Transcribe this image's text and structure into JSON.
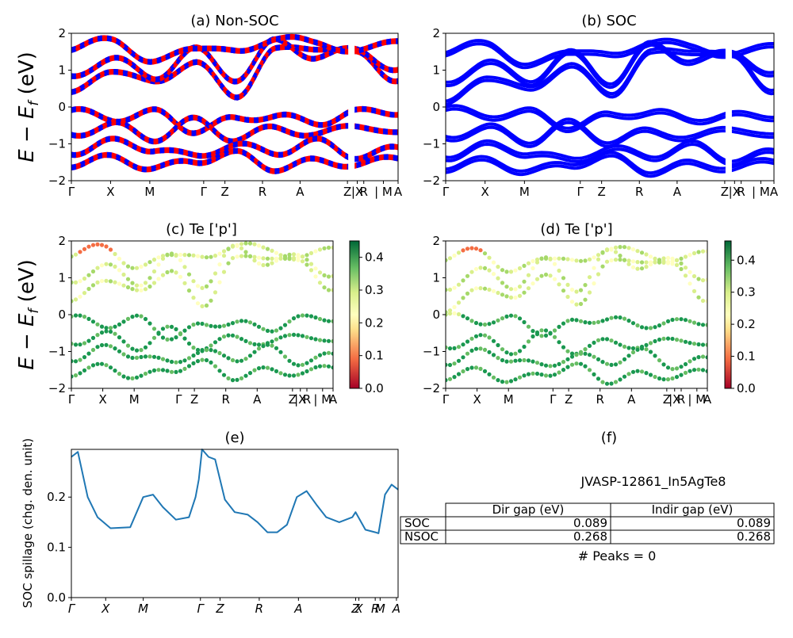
{
  "figure": {
    "ylabel_energy": "E − E",
    "ylabel_energy_sub": "f",
    "ylabel_energy_unit": " (eV)",
    "colors": {
      "nonsoc_red": "#ff0000",
      "nonsoc_blue": "#0000ff",
      "soc_blue": "#0000ff",
      "spillage_line": "#1f77b4"
    }
  },
  "chart_data": [
    {
      "id": "a",
      "type": "line",
      "title": "(a) Non-SOC",
      "ylim": [
        -2,
        2
      ],
      "yticks": [
        "2",
        "1",
        "0",
        "−1",
        "−2"
      ],
      "kpath": [
        "Γ",
        "X",
        "M",
        "Γ",
        "Z",
        "R",
        "A",
        "Z",
        "|X",
        "R",
        "| M",
        "A"
      ],
      "series_colors": [
        "#ff0000",
        "#0000ff"
      ],
      "bands_eV": [
        [
          -0.05,
          -0.3,
          -0.1,
          -0.6,
          -0.3,
          -0.2,
          -0.4,
          -0.1,
          -0.1
        ],
        [
          0.3,
          1.0,
          0.6,
          1.2,
          0.25,
          1.5,
          1.6,
          1.4,
          0.7
        ],
        [
          0.8,
          1.4,
          0.8,
          1.6,
          0.8,
          1.8,
          1.4,
          1.6,
          1.0
        ],
        [
          -0.8,
          -0.5,
          -0.9,
          -0.4,
          -0.9,
          -0.6,
          -0.8,
          -0.5,
          -0.8
        ],
        [
          -1.2,
          -0.9,
          -1.1,
          -1.3,
          -1.0,
          -1.2,
          -0.9,
          -1.3,
          -1.1
        ],
        [
          -1.6,
          -1.4,
          -1.7,
          -1.5,
          -1.3,
          -1.7,
          -1.5,
          -1.6,
          -1.4
        ],
        [
          1.6,
          1.9,
          1.2,
          1.7,
          1.5,
          1.9,
          1.8,
          1.5,
          1.9
        ]
      ]
    },
    {
      "id": "b",
      "type": "line",
      "title": "(b) SOC",
      "ylim": [
        -2,
        2
      ],
      "yticks": [
        "2",
        "1",
        "0",
        "−1",
        "−2"
      ],
      "kpath": [
        "Γ",
        "X",
        "M",
        "Γ",
        "Z",
        "R",
        "A",
        "Z",
        "|X",
        "R",
        "| M",
        "A"
      ],
      "series_colors": [
        "#0000ff"
      ],
      "bands_eV": [
        [
          0.0,
          -0.2,
          -0.1,
          -0.5,
          -0.2,
          -0.1,
          -0.3,
          -0.2,
          -0.2
        ],
        [
          0.0,
          0.8,
          0.4,
          1.1,
          0.3,
          1.4,
          1.5,
          1.3,
          0.4
        ],
        [
          0.6,
          1.3,
          0.7,
          1.5,
          0.7,
          1.7,
          1.3,
          1.5,
          0.9
        ],
        [
          -0.9,
          -0.6,
          -1.0,
          -0.5,
          -1.0,
          -0.7,
          -0.9,
          -0.6,
          -0.9
        ],
        [
          -1.3,
          -1.0,
          -1.2,
          -1.4,
          -1.1,
          -1.3,
          -1.0,
          -1.4,
          -1.2
        ],
        [
          -1.7,
          -1.5,
          -1.8,
          -1.6,
          -1.4,
          -1.8,
          -1.6,
          -1.7,
          -1.5
        ],
        [
          1.5,
          1.8,
          1.1,
          1.6,
          1.4,
          1.8,
          1.7,
          1.4,
          1.8
        ]
      ]
    },
    {
      "id": "c",
      "type": "scatter",
      "title": "(c)  Te ['p']",
      "ylim": [
        -2,
        2
      ],
      "yticks": [
        "2",
        "1",
        "0",
        "−1",
        "−2"
      ],
      "kpath": [
        "Γ",
        "X",
        "M",
        "Γ",
        "Z",
        "R",
        "A",
        "Z",
        "|X",
        "R",
        "| M",
        "A"
      ],
      "colorbar": {
        "range": [
          0.0,
          0.45
        ],
        "ticks": [
          "0.4",
          "0.3",
          "0.2",
          "0.1",
          "0.0"
        ],
        "colormap": "RdYlGn"
      }
    },
    {
      "id": "d",
      "type": "scatter",
      "title": "(d) Te ['p']",
      "ylim": [
        -2,
        2
      ],
      "yticks": [
        "2",
        "1",
        "0",
        "−1",
        "−2"
      ],
      "kpath": [
        "Γ",
        "X",
        "M",
        "Γ",
        "Z",
        "R",
        "A",
        "Z",
        "|X",
        "R",
        "| M",
        "A"
      ],
      "colorbar": {
        "range": [
          0.0,
          0.46
        ],
        "ticks": [
          "0.4",
          "0.3",
          "0.2",
          "0.1",
          "0.0"
        ],
        "colormap": "RdYlGn"
      }
    },
    {
      "id": "e",
      "type": "line",
      "title": "(e)",
      "ylabel": "SOC spillage (chg. den. unit)",
      "ylim": [
        0.0,
        0.295
      ],
      "yticks": [
        "0.2",
        "0.1",
        "0.0"
      ],
      "kpath": [
        "Γ",
        "X",
        "M",
        "Γ",
        "Z",
        "R",
        "A",
        "Z",
        "X",
        "R",
        "M",
        "A"
      ],
      "x": [
        0,
        0.02,
        0.05,
        0.08,
        0.12,
        0.18,
        0.22,
        0.25,
        0.28,
        0.32,
        0.36,
        0.38,
        0.39,
        0.4,
        0.42,
        0.44,
        0.47,
        0.5,
        0.54,
        0.57,
        0.6,
        0.63,
        0.66,
        0.69,
        0.72,
        0.75,
        0.78,
        0.82,
        0.86,
        0.87,
        0.9,
        0.93,
        0.94,
        0.96,
        0.98,
        1.0
      ],
      "y": [
        0.28,
        0.29,
        0.2,
        0.16,
        0.138,
        0.14,
        0.2,
        0.205,
        0.18,
        0.155,
        0.16,
        0.2,
        0.235,
        0.295,
        0.28,
        0.275,
        0.195,
        0.17,
        0.165,
        0.15,
        0.13,
        0.13,
        0.145,
        0.2,
        0.212,
        0.185,
        0.16,
        0.15,
        0.16,
        0.17,
        0.135,
        0.13,
        0.128,
        0.205,
        0.225,
        0.215
      ]
    }
  ],
  "table": {
    "title": "(f)",
    "material": "JVASP-12861_In5AgTe8",
    "headers": [
      "Dir gap (eV)",
      "Indir gap (eV)"
    ],
    "rows": [
      {
        "label": "SOC",
        "dir": "0.089",
        "indir": "0.089"
      },
      {
        "label": "NSOC",
        "dir": "0.268",
        "indir": "0.268"
      }
    ],
    "peaks": "# Peaks = 0"
  }
}
